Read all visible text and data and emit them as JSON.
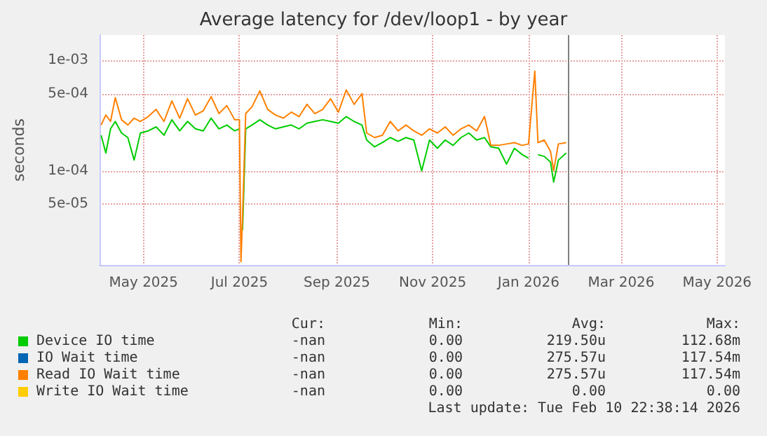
{
  "chart_data": {
    "type": "line",
    "title": "Average latency for /dev/loop1 - by year",
    "ylabel": "seconds",
    "log": "y",
    "grid": true,
    "legend": "bottom",
    "marker": "none",
    "line_style": "solid",
    "xlim": [
      "2025-04-03",
      "2026-05-06"
    ],
    "xticks": [
      {
        "value": "2025-05-01",
        "label": "May 2025"
      },
      {
        "value": "2025-07-01",
        "label": "Jul 2025"
      },
      {
        "value": "2025-09-01",
        "label": "Sep 2025"
      },
      {
        "value": "2025-11-01",
        "label": "Nov 2025"
      },
      {
        "value": "2026-01-01",
        "label": "Jan 2026"
      },
      {
        "value": "2026-03-01",
        "label": "Mar 2026"
      },
      {
        "value": "2026-05-01",
        "label": "May 2026"
      }
    ],
    "ylim": [
      1.4e-05,
      0.0017
    ],
    "yticks": [
      {
        "value": 5e-05,
        "label": "5e-05"
      },
      {
        "value": 0.0001,
        "label": "1e-04"
      },
      {
        "value": 0.0005,
        "label": "5e-04"
      },
      {
        "value": 0.001,
        "label": "1e-03"
      }
    ],
    "ref_lines": [
      {
        "axis": "x",
        "value": "2026-01-26",
        "color": "#808080"
      }
    ],
    "x": [
      "2025-04-04",
      "2025-04-07",
      "2025-04-10",
      "2025-04-13",
      "2025-04-17",
      "2025-04-21",
      "2025-04-25",
      "2025-04-29",
      "2025-05-04",
      "2025-05-09",
      "2025-05-14",
      "2025-05-19",
      "2025-05-24",
      "2025-05-29",
      "2025-06-03",
      "2025-06-08",
      "2025-06-13",
      "2025-06-18",
      "2025-06-23",
      "2025-06-28",
      "2025-07-01",
      "2025-07-02",
      "2025-07-03",
      "2025-07-05",
      "2025-07-09",
      "2025-07-14",
      "2025-07-19",
      "2025-07-24",
      "2025-07-29",
      "2025-08-03",
      "2025-08-08",
      "2025-08-13",
      "2025-08-18",
      "2025-08-23",
      "2025-08-28",
      "2025-09-02",
      "2025-09-07",
      "2025-09-12",
      "2025-09-17",
      "2025-09-20",
      "2025-09-25",
      "2025-09-30",
      "2025-10-05",
      "2025-10-10",
      "2025-10-15",
      "2025-10-20",
      "2025-10-25",
      "2025-10-30",
      "2025-11-04",
      "2025-11-09",
      "2025-11-14",
      "2025-11-19",
      "2025-11-24",
      "2025-11-29",
      "2025-12-04",
      "2025-12-08",
      "2025-12-13",
      "2025-12-18",
      "2025-12-23",
      "2025-12-28",
      "2026-01-01",
      "2026-01-05",
      "2026-01-07",
      "2026-01-11",
      "2026-01-15",
      "2026-01-17",
      "2026-01-20",
      "2026-01-25"
    ],
    "series": [
      {
        "name": "Device IO time",
        "color": "#00cc00",
        "values": [
          0.00021,
          0.000145,
          0.00024,
          0.00028,
          0.00022,
          0.0002,
          0.000125,
          0.00022,
          0.00023,
          0.00025,
          0.00021,
          0.00029,
          0.00023,
          0.00028,
          0.00024,
          0.00023,
          0.0003,
          0.00024,
          0.00026,
          0.00023,
          0.00024,
          null,
          2.9e-05,
          0.00024,
          0.00026,
          0.00029,
          0.00026,
          0.00024,
          0.00025,
          0.00026,
          0.00024,
          0.00027,
          0.00028,
          0.00029,
          0.00028,
          0.00027,
          0.00031,
          0.00028,
          0.00026,
          0.00019,
          0.000165,
          0.00018,
          0.0002,
          0.000185,
          0.0002,
          0.00019,
          0.0001,
          0.00019,
          0.00016,
          0.00019,
          0.00017,
          0.0002,
          0.00022,
          0.00019,
          0.0002,
          0.000165,
          0.00016,
          0.000115,
          0.00016,
          0.00014,
          0.00013,
          null,
          0.00014,
          0.000135,
          0.00012,
          7.9e-05,
          0.000125,
          0.000145
        ]
      },
      {
        "name": "IO Wait time",
        "color": "#0066b3",
        "values": [
          null,
          null,
          null,
          null,
          null,
          null,
          null,
          null,
          null,
          null,
          null,
          null,
          null,
          null,
          null,
          null,
          null,
          null,
          null,
          null,
          null,
          null,
          null,
          null,
          null,
          null,
          null,
          null,
          null,
          null,
          null,
          null,
          null,
          null,
          null,
          null,
          null,
          null,
          null,
          null,
          null,
          null,
          null,
          null,
          null,
          null,
          null,
          null,
          null,
          null,
          null,
          null,
          null,
          null,
          null,
          null,
          null,
          null,
          null,
          null,
          null,
          null,
          null,
          null,
          null,
          null,
          null,
          null
        ]
      },
      {
        "name": "Read IO Wait time",
        "color": "#ff8000",
        "values": [
          0.00026,
          0.00032,
          0.00028,
          0.00046,
          0.00029,
          0.00026,
          0.0003,
          0.00028,
          0.00031,
          0.00036,
          0.00028,
          0.00043,
          0.0003,
          0.00045,
          0.00032,
          0.00035,
          0.00047,
          0.00033,
          0.00039,
          0.00029,
          0.00029,
          1.5e-05,
          3.8e-05,
          0.00033,
          0.00038,
          0.00053,
          0.00036,
          0.00032,
          0.0003,
          0.00034,
          0.00031,
          0.0004,
          0.00033,
          0.00036,
          0.00045,
          0.00034,
          0.00054,
          0.0004,
          0.0005,
          0.00022,
          0.0002,
          0.00021,
          0.00028,
          0.00023,
          0.00026,
          0.00023,
          0.00021,
          0.00024,
          0.00022,
          0.00025,
          0.00021,
          0.00024,
          0.00026,
          0.00023,
          0.00031,
          0.00017,
          0.00017,
          0.000175,
          0.00018,
          0.00017,
          0.000175,
          0.0008,
          0.00018,
          0.00019,
          0.00015,
          0.0001,
          0.000175,
          0.00018
        ]
      },
      {
        "name": "Write IO Wait time",
        "color": "#ffcc00",
        "values": [
          null,
          null,
          null,
          null,
          null,
          null,
          null,
          null,
          null,
          null,
          null,
          null,
          null,
          null,
          null,
          null,
          null,
          null,
          null,
          null,
          null,
          null,
          null,
          null,
          null,
          null,
          null,
          null,
          null,
          null,
          null,
          null,
          null,
          null,
          null,
          null,
          null,
          null,
          null,
          null,
          null,
          null,
          null,
          null,
          null,
          null,
          null,
          null,
          null,
          null,
          null,
          null,
          null,
          null,
          null,
          null,
          null,
          null,
          null,
          null,
          null,
          null,
          null,
          null,
          null,
          null,
          null,
          null
        ]
      }
    ],
    "annotations": [
      "Cur:",
      "Min:",
      "Avg:",
      "Max:",
      "-nan",
      "0.00",
      "219.50u",
      "112.68m",
      "-nan",
      "0.00",
      "275.57u",
      "117.54m",
      "-nan",
      "0.00",
      "275.57u",
      "117.54m",
      "-nan",
      "0.00",
      "0.00",
      "0.00",
      "Last update: Tue Feb 10 22:38:14 2026"
    ]
  }
}
